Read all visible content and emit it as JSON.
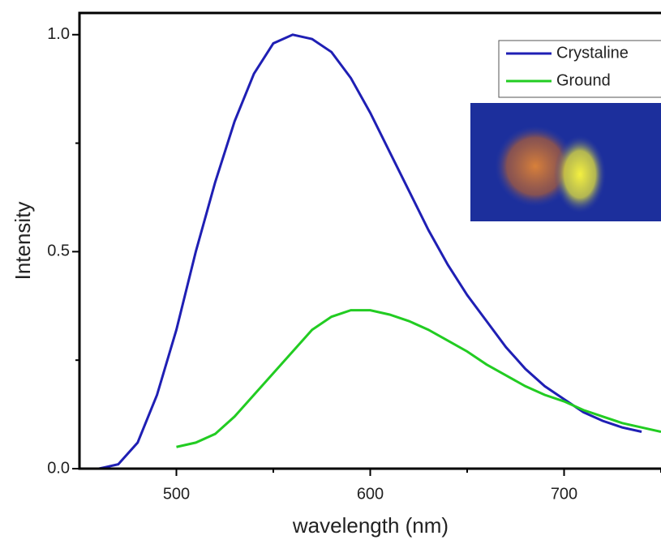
{
  "chart_data": {
    "type": "line",
    "xlabel": "wavelength (nm)",
    "ylabel": "Intensity",
    "xlim": [
      450,
      750
    ],
    "ylim": [
      0,
      1.05
    ],
    "xticks": [
      500,
      600,
      700
    ],
    "xticks_minor": [
      550,
      650,
      750
    ],
    "yticks": [
      {
        "value": 0,
        "label": "0.0"
      },
      0.5,
      {
        "value": 1,
        "label": "1.0"
      }
    ],
    "yticks_minor": [
      0.25,
      0.75
    ],
    "legend": "upper right",
    "series": [
      {
        "name": "Crystaline",
        "color": "#1f1fb4",
        "x": [
          460,
          470,
          480,
          490,
          500,
          510,
          520,
          530,
          540,
          550,
          560,
          570,
          580,
          590,
          600,
          610,
          620,
          630,
          640,
          650,
          660,
          670,
          680,
          690,
          700,
          710,
          720,
          730,
          740
        ],
        "values": [
          0.0,
          0.01,
          0.06,
          0.17,
          0.32,
          0.5,
          0.66,
          0.8,
          0.91,
          0.98,
          1.0,
          0.99,
          0.96,
          0.9,
          0.82,
          0.73,
          0.64,
          0.55,
          0.47,
          0.4,
          0.34,
          0.28,
          0.23,
          0.19,
          0.16,
          0.13,
          0.11,
          0.095,
          0.085
        ]
      },
      {
        "name": "Ground",
        "color": "#22cc22",
        "x": [
          500,
          510,
          520,
          530,
          540,
          550,
          560,
          570,
          580,
          590,
          600,
          610,
          620,
          630,
          640,
          650,
          660,
          670,
          680,
          690,
          700,
          710,
          720,
          730,
          740,
          750
        ],
        "values": [
          0.05,
          0.06,
          0.08,
          0.12,
          0.17,
          0.22,
          0.27,
          0.32,
          0.35,
          0.365,
          0.365,
          0.355,
          0.34,
          0.32,
          0.295,
          0.27,
          0.24,
          0.215,
          0.19,
          0.17,
          0.155,
          0.135,
          0.12,
          0.105,
          0.095,
          0.085
        ]
      }
    ]
  }
}
